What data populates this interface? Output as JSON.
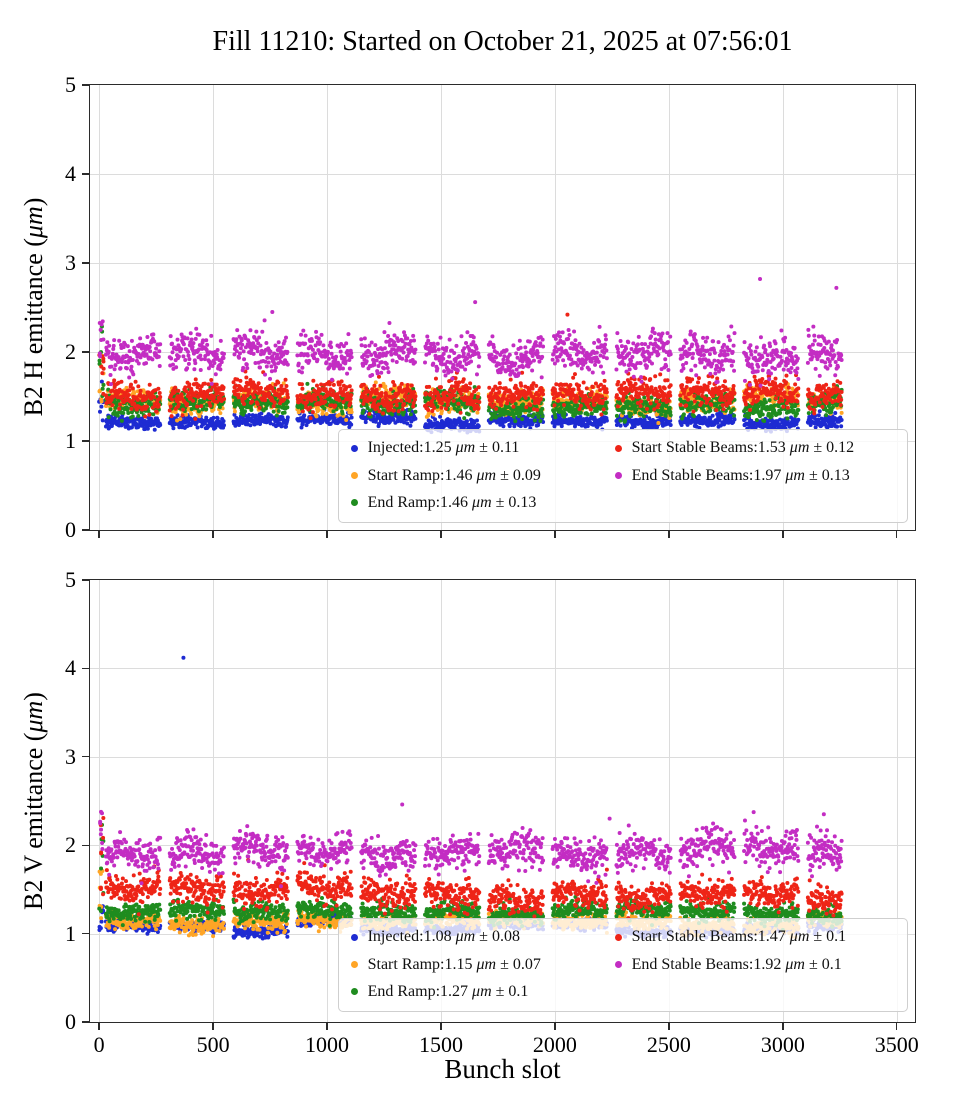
{
  "title": "Fill 11210: Started on October 21, 2025 at 07:56:01",
  "chart_data": {
    "type": "scatter",
    "figure_title": "Fill 11210: Started on October 21, 2025 at 07:56:01",
    "xlabel": "Bunch slot",
    "xlim": [
      -40,
      3580
    ],
    "xticks": [
      0,
      500,
      1000,
      1500,
      2000,
      2500,
      3000,
      3500
    ],
    "grid": true,
    "marker_radius_px": 2,
    "colors": {
      "injected": "#1e2bd2",
      "start_ramp": "#ffa526",
      "end_ramp": "#1f8c1f",
      "start_stable": "#ee2417",
      "end_stable": "#c32dc3"
    },
    "bunch_pattern": {
      "first_slot": 30,
      "last_slot": 3260,
      "train_length": 240,
      "train_gap": 40,
      "slot_step": 2,
      "pilot_x_max": 20,
      "pilot_points": 8
    },
    "charts": [
      {
        "name": "B2 H emittance",
        "ylabel_parts": [
          "B2 H emittance (",
          {
            "i": "μm"
          },
          ")"
        ],
        "ylim": [
          0,
          5
        ],
        "yticks": [
          0,
          1,
          2,
          3,
          4,
          5
        ],
        "show_x_tick_labels": false,
        "series": [
          {
            "name": "Injected",
            "color": "injected",
            "mean": 1.25,
            "std": 0.11,
            "band_mean": 1.22,
            "band_std": 0.035,
            "pilot_spread": 0.55
          },
          {
            "name": "Start Ramp",
            "color": "start_ramp",
            "mean": 1.46,
            "std": 0.09,
            "band_mean": 1.45,
            "band_std": 0.06,
            "pilot_spread": 0.6
          },
          {
            "name": "End Ramp",
            "color": "end_ramp",
            "mean": 1.46,
            "std": 0.13,
            "band_mean": 1.42,
            "band_std": 0.06,
            "pilot_spread": 0.9
          },
          {
            "name": "Start Stable Beams",
            "color": "start_stable",
            "mean": 1.53,
            "std": 0.12,
            "band_mean": 1.52,
            "band_std": 0.08,
            "pilot_spread": 0.8
          },
          {
            "name": "End Stable Beams",
            "color": "end_stable",
            "mean": 1.97,
            "std": 0.13,
            "band_mean": 1.97,
            "band_std": 0.11,
            "pilot_spread": 0.4
          }
        ],
        "outliers": [
          {
            "series": "End Stable Beams",
            "x": 760,
            "y": 2.45
          },
          {
            "series": "End Stable Beams",
            "x": 1650,
            "y": 2.56
          },
          {
            "series": "Start Stable Beams",
            "x": 2055,
            "y": 2.42
          },
          {
            "series": "End Stable Beams",
            "x": 2900,
            "y": 2.82
          },
          {
            "series": "End Stable Beams",
            "x": 3235,
            "y": 2.72
          }
        ],
        "legend": {
          "items": [
            {
              "color": "injected",
              "parts": [
                "Injected:1.25 ",
                {
                  "i": "μm"
                },
                " ± 0.11"
              ]
            },
            {
              "color": "start_ramp",
              "parts": [
                "Start Ramp:1.46 ",
                {
                  "i": "μm"
                },
                " ± 0.09"
              ]
            },
            {
              "color": "end_ramp",
              "parts": [
                "End Ramp:1.46 ",
                {
                  "i": "μm"
                },
                " ± 0.13"
              ]
            },
            {
              "color": "start_stable",
              "parts": [
                "Start Stable Beams:1.53 ",
                {
                  "i": "μm"
                },
                " ± 0.12"
              ]
            },
            {
              "color": "end_stable",
              "parts": [
                "End Stable Beams:1.97 ",
                {
                  "i": "μm"
                },
                " ± 0.13"
              ]
            }
          ]
        }
      },
      {
        "name": "B2 V emittance",
        "ylabel_parts": [
          "B2 V emittance (",
          {
            "i": "μm"
          },
          ")"
        ],
        "ylim": [
          0,
          5
        ],
        "yticks": [
          0,
          1,
          2,
          3,
          4,
          5
        ],
        "show_x_tick_labels": true,
        "series": [
          {
            "name": "Injected",
            "color": "injected",
            "mean": 1.08,
            "std": 0.08,
            "band_mean": 1.05,
            "band_std": 0.03,
            "pilot_spread": 0.3
          },
          {
            "name": "Start Ramp",
            "color": "start_ramp",
            "mean": 1.15,
            "std": 0.07,
            "band_mean": 1.14,
            "band_std": 0.045,
            "pilot_spread": 0.85
          },
          {
            "name": "End Ramp",
            "color": "end_ramp",
            "mean": 1.27,
            "std": 0.1,
            "band_mean": 1.25,
            "band_std": 0.05,
            "pilot_spread": 1.1
          },
          {
            "name": "Start Stable Beams",
            "color": "start_stable",
            "mean": 1.47,
            "std": 0.1,
            "band_mean": 1.45,
            "band_std": 0.08,
            "pilot_spread": 0.9
          },
          {
            "name": "End Stable Beams",
            "color": "end_stable",
            "mean": 1.92,
            "std": 0.1,
            "band_mean": 1.92,
            "band_std": 0.1,
            "pilot_spread": 0.5
          }
        ],
        "outliers": [
          {
            "series": "Injected",
            "x": 370,
            "y": 4.12
          },
          {
            "series": "End Stable Beams",
            "x": 1330,
            "y": 2.46
          },
          {
            "series": "End Stable Beams",
            "x": 2240,
            "y": 2.3
          },
          {
            "series": "End Stable Beams",
            "x": 3180,
            "y": 2.35
          }
        ],
        "legend": {
          "items": [
            {
              "color": "injected",
              "parts": [
                "Injected:1.08 ",
                {
                  "i": "μm"
                },
                " ± 0.08"
              ]
            },
            {
              "color": "start_ramp",
              "parts": [
                "Start Ramp:1.15 ",
                {
                  "i": "μm"
                },
                " ± 0.07"
              ]
            },
            {
              "color": "end_ramp",
              "parts": [
                "End Ramp:1.27 ",
                {
                  "i": "μm"
                },
                " ± 0.1"
              ]
            },
            {
              "color": "start_stable",
              "parts": [
                "Start Stable Beams:1.47 ",
                {
                  "i": "μm"
                },
                " ± 0.1"
              ]
            },
            {
              "color": "end_stable",
              "parts": [
                "End Stable Beams:1.92 ",
                {
                  "i": "μm"
                },
                " ± 0.1"
              ]
            }
          ]
        }
      }
    ]
  }
}
